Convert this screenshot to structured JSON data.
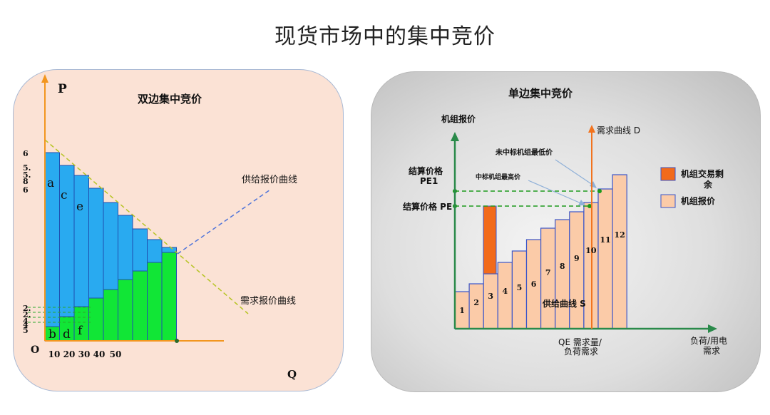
{
  "page": {
    "title": "现货市场中的集中竞价"
  },
  "left": {
    "title": "双边集中竞价",
    "axis_p": "P",
    "axis_q": "Q",
    "origin": "O",
    "supply_curve_label": "供给报价曲线",
    "demand_curve_label": "需求报价曲线",
    "x_ticks": [
      "10",
      "20",
      "30",
      "40",
      "50"
    ],
    "y_ticks_top": [
      "6",
      "5.",
      "5.",
      "8",
      "6"
    ],
    "y_ticks_bottom": [
      "2.",
      "2.",
      "4",
      "4",
      "5"
    ],
    "bar_letters": [
      "a",
      "c",
      "e",
      "b",
      "d",
      "f"
    ],
    "colors": {
      "demand_bar": "#29aaf0",
      "supply_bar": "#11e636",
      "axis": "#f2961f"
    }
  },
  "right": {
    "title": "单边集中竞价",
    "y_axis_label": "机组报价",
    "x_axis_label_line1": "负荷/用电",
    "x_axis_label_line2": "需求",
    "demand_line_label": "需求曲线 D",
    "pe1_label_line1": "结算价格",
    "pe1_label_line2": "PE1",
    "pe_label": "结算价格 PE",
    "lowest_unmatched_label": "未中标机组最低价",
    "highest_matched_label": "中标机组最高价",
    "supply_curve_label": "供给曲线 S",
    "qe_label_line1": "QE 需求量/",
    "qe_label_line2": "负荷需求",
    "legend": [
      {
        "label_line1": "机组交易剩",
        "label_line2": "余",
        "color": "#f26a1b"
      },
      {
        "label_line1": "机组报价",
        "label_line2": "",
        "color": "#fbcba8"
      }
    ],
    "unit_labels": [
      "1",
      "2",
      "3",
      "4",
      "5",
      "6",
      "7",
      "8",
      "9",
      "10",
      "11",
      "12"
    ],
    "colors": {
      "axis": "#2a8a4a",
      "bar_fill": "#fbcba8",
      "bar_border": "#3a55c9",
      "demand_line": "#f2731e",
      "surplus": "#f26a1b",
      "dash": "#1c9a1c"
    }
  }
}
